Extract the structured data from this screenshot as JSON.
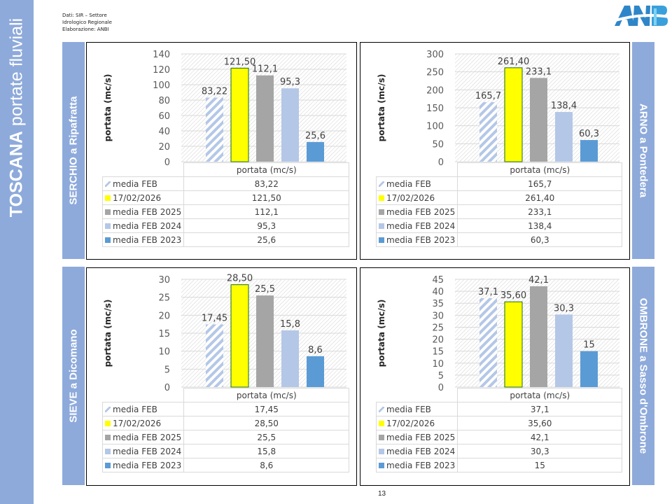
{
  "page": {
    "banner_title_bold": "TOSCANA",
    "banner_title_rest": " portate fluviali",
    "source_lines": [
      "Dati: SIR – Settore",
      "Idrologico Regionale",
      "Elaborazione: ANBI"
    ],
    "logo_text": "ANBI",
    "page_number": "13"
  },
  "colors": {
    "banner": "#8eaadb",
    "media_feb_hatch": "#b4c7e7",
    "date_2026": "#ffff00",
    "feb_2025": "#a5a5a5",
    "feb_2024": "#b4c7e7",
    "feb_2023": "#5b9bd5"
  },
  "legend": {
    "series": [
      "media FEB",
      "17/02/2026",
      "media FEB 2025",
      "media FEB 2024",
      "media FEB 2023"
    ],
    "column_header": "portata (mc/s)"
  },
  "chart_data": [
    {
      "type": "bar",
      "station": "SERCHIO a Ripafratta",
      "ylabel": "portata (mc/s)",
      "xlabel": "portata (mc/s)",
      "categories": [
        "media FEB",
        "17/02/2026",
        "media FEB 2025",
        "media FEB 2024",
        "media FEB 2023"
      ],
      "values": [
        83.22,
        121.5,
        112.1,
        95.3,
        25.6
      ],
      "labels": [
        "83,22",
        "121,50",
        "112,1",
        "95,3",
        "25,6"
      ],
      "ylim": [
        0,
        140
      ],
      "yticks": [
        "0",
        "20",
        "40",
        "60",
        "80",
        "100",
        "120",
        "140"
      ],
      "grid": true
    },
    {
      "type": "bar",
      "station": "ARNO a Pontedera",
      "ylabel": "portata (mc/s)",
      "xlabel": "portata (mc/s)",
      "categories": [
        "media FEB",
        "17/02/2026",
        "media FEB 2025",
        "media FEB 2024",
        "media FEB 2023"
      ],
      "values": [
        165.7,
        261.4,
        233.1,
        138.4,
        60.3
      ],
      "labels": [
        "165,7",
        "261,40",
        "233,1",
        "138,4",
        "60,3"
      ],
      "ylim": [
        0,
        300
      ],
      "yticks": [
        "0",
        "50",
        "100",
        "150",
        "200",
        "250",
        "300"
      ],
      "grid": true
    },
    {
      "type": "bar",
      "station": "SIEVE a Dicomano",
      "ylabel": "portata (mc/s)",
      "xlabel": "portata (mc/s)",
      "categories": [
        "media FEB",
        "17/02/2026",
        "media FEB 2025",
        "media FEB 2024",
        "media FEB 2023"
      ],
      "values": [
        17.45,
        28.5,
        25.5,
        15.8,
        8.6
      ],
      "labels": [
        "17,45",
        "28,50",
        "25,5",
        "15,8",
        "8,6"
      ],
      "ylim": [
        0,
        30
      ],
      "yticks": [
        "0",
        "5",
        "10",
        "15",
        "20",
        "25",
        "30"
      ],
      "grid": true
    },
    {
      "type": "bar",
      "station": "OMBRONE a Sasso d'Ombrone",
      "ylabel": "portata (mc/s)",
      "xlabel": "portata (mc/s)",
      "categories": [
        "media FEB",
        "17/02/2026",
        "media FEB 2025",
        "media FEB 2024",
        "media FEB 2023"
      ],
      "values": [
        37.1,
        35.6,
        42.1,
        30.3,
        15
      ],
      "labels": [
        "37,1",
        "35,60",
        "42,1",
        "30,3",
        "15"
      ],
      "ylim": [
        0,
        45
      ],
      "yticks": [
        "0",
        "5",
        "10",
        "15",
        "20",
        "25",
        "30",
        "35",
        "40",
        "45"
      ],
      "grid": true
    }
  ]
}
